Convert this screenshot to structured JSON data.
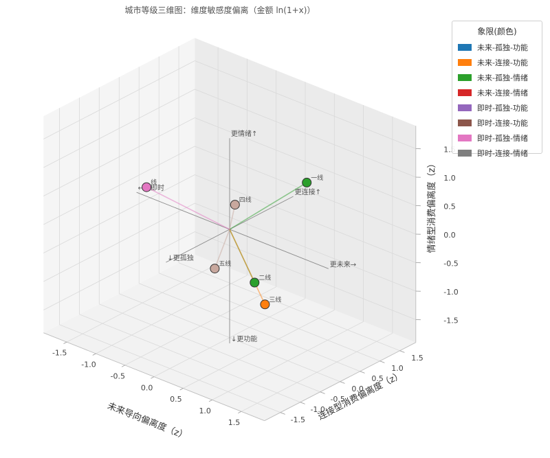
{
  "chart_data": {
    "type": "scatter3d",
    "title": "城市等级三维图：维度敏感度偏离（金额 ln(1+x)）",
    "xlabel": "未来导向偏离度（z）",
    "ylabel": "连接型消费偏离度（z）",
    "zlabel": "情绪型消费偏离度（z）",
    "xlim": [
      -1.9,
      1.9
    ],
    "ylim": [
      -1.9,
      1.9
    ],
    "zlim": [
      -1.9,
      1.9
    ],
    "grid": true,
    "legend_position": "top-right",
    "x_ticks": [
      "-1.5",
      "-1.0",
      "-0.5",
      "0.0",
      "0.5",
      "1.0",
      "1.5"
    ],
    "y_ticks": [
      "-1.5",
      "-1.0",
      "-0.5",
      "0.0",
      "0.5",
      "1.0",
      "1.5"
    ],
    "z_ticks": [
      "-1.5",
      "-1.0",
      "-0.5",
      "0.0",
      "0.5",
      "1.0",
      "1.5"
    ],
    "legend": {
      "title": "象限(颜色)",
      "entries": [
        {
          "label": "未来-孤独-功能",
          "color": "#1f77b4"
        },
        {
          "label": "未来-连接-功能",
          "color": "#ff7f0e"
        },
        {
          "label": "未来-孤独-情绪",
          "color": "#2ca02c"
        },
        {
          "label": "未来-连接-情绪",
          "color": "#d62728"
        },
        {
          "label": "即时-孤独-功能",
          "color": "#9467bd"
        },
        {
          "label": "即时-连接-功能",
          "color": "#8c564b"
        },
        {
          "label": "即时-孤独-情绪",
          "color": "#e377c2"
        },
        {
          "label": "即时-连接-情绪",
          "color": "#7f7f7f"
        }
      ]
    },
    "axis_annotations": [
      {
        "text": "更情绪↑",
        "x": 0,
        "y": 0,
        "z": 1.6
      },
      {
        "text": "↓更功能",
        "x": 0,
        "y": 0,
        "z": -2.0
      },
      {
        "text": "更连接↑",
        "x": 0,
        "y": 1.6,
        "z": 0
      },
      {
        "text": "↓更孤独",
        "x": 0,
        "y": -1.6,
        "z": 0
      },
      {
        "text": "更未来→",
        "x": 1.7,
        "y": 0,
        "z": 0
      },
      {
        "text": "←更即时",
        "x": -1.6,
        "y": 0,
        "z": 0
      }
    ],
    "points": [
      {
        "label": "一线",
        "x": 0.3,
        "y": 1.5,
        "z": 0.4,
        "color": "#2ca02c"
      },
      {
        "label": "二线",
        "x": 0.6,
        "y": -0.25,
        "z": -0.6,
        "color": "#2ca02c"
      },
      {
        "label": "三线",
        "x": 0.95,
        "y": -0.5,
        "z": -0.75,
        "color": "#ff7f0e"
      },
      {
        "label": "四线",
        "x": -0.25,
        "y": 0.5,
        "z": 0.15,
        "color": "#c8a89e"
      },
      {
        "label": "五线",
        "x": -0.05,
        "y": -0.3,
        "z": -0.6,
        "color": "#c8a89e"
      },
      {
        "label": "线",
        "x": -1.6,
        "y": 0.25,
        "z": 0.0,
        "color": "#e377c2"
      }
    ]
  }
}
